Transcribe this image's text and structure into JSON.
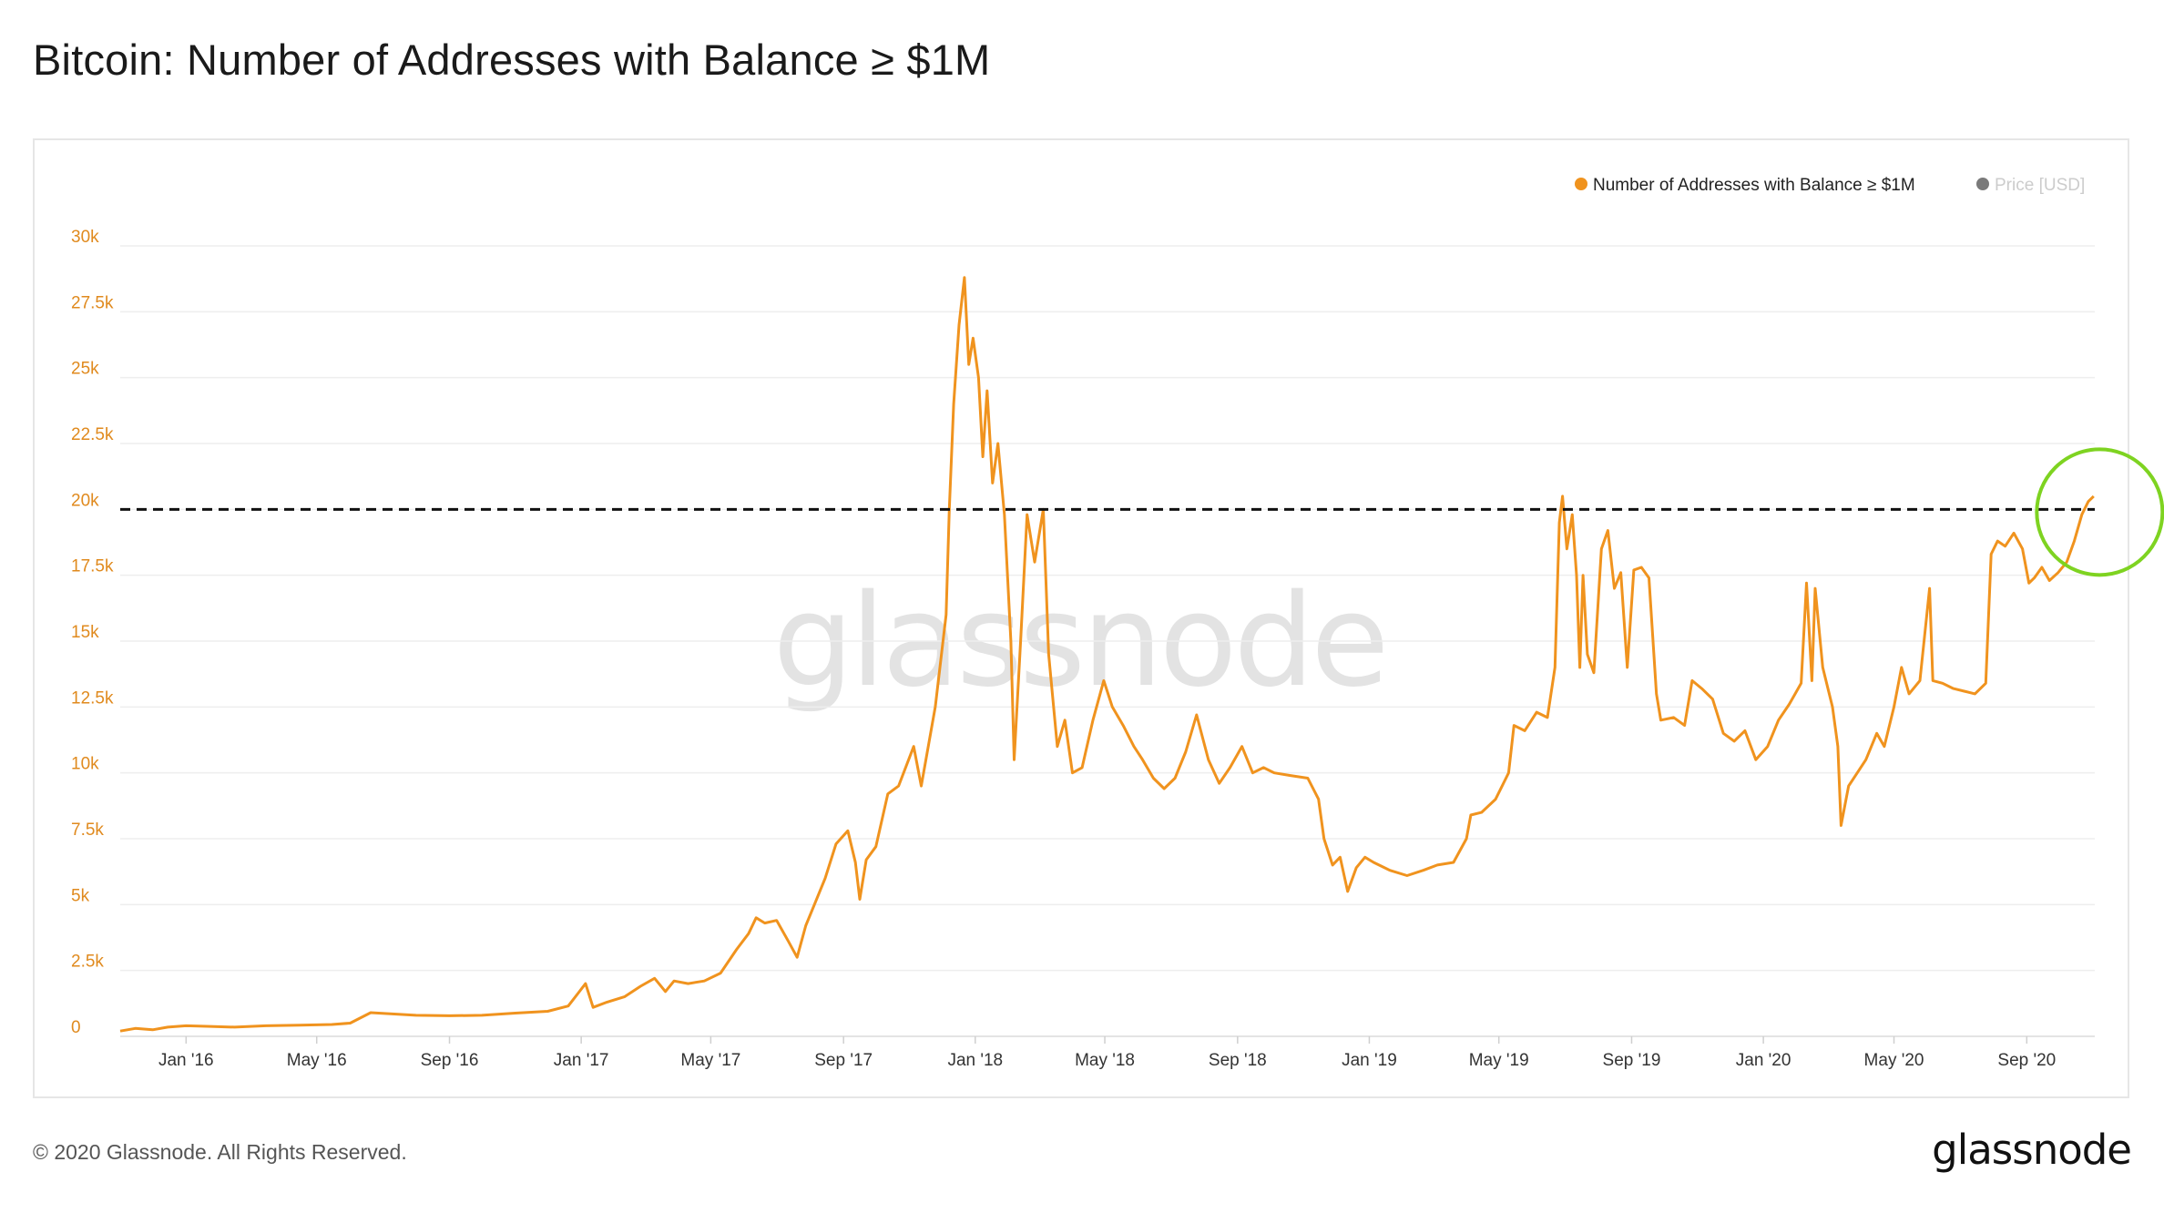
{
  "header": {
    "title": "Bitcoin: Number of Addresses with Balance ≥ $1M"
  },
  "footer": {
    "copyright": "© 2020 Glassnode. All Rights Reserved.",
    "brand": "glassnode"
  },
  "watermark": "glassnode",
  "colors": {
    "series": "#f0931e",
    "price": "#7a7a7a",
    "grid": "#eeeeee",
    "threshold": "#111111",
    "highlight": "#7ed321"
  },
  "chart_data": {
    "type": "line",
    "title": "Bitcoin: Number of Addresses with Balance ≥ $1M",
    "xlabel": "",
    "ylabel": "",
    "ylim": [
      0,
      30000
    ],
    "xlim": [
      "2015-11-01",
      "2020-11-03"
    ],
    "grid": true,
    "legend_placement": "top-right",
    "legend": [
      {
        "label": "Number of Addresses with Balance ≥ $1M",
        "color": "#f0931e",
        "active": true
      },
      {
        "label": "Price [USD]",
        "color": "#7a7a7a",
        "active": false
      }
    ],
    "y_ticks": [
      {
        "value": 0,
        "label": "0"
      },
      {
        "value": 2500,
        "label": "2.5k"
      },
      {
        "value": 5000,
        "label": "5k"
      },
      {
        "value": 7500,
        "label": "7.5k"
      },
      {
        "value": 10000,
        "label": "10k"
      },
      {
        "value": 12500,
        "label": "12.5k"
      },
      {
        "value": 15000,
        "label": "15k"
      },
      {
        "value": 17500,
        "label": "17.5k"
      },
      {
        "value": 20000,
        "label": "20k"
      },
      {
        "value": 22500,
        "label": "22.5k"
      },
      {
        "value": 25000,
        "label": "25k"
      },
      {
        "value": 27500,
        "label": "27.5k"
      },
      {
        "value": 30000,
        "label": "30k"
      }
    ],
    "x_ticks": [
      {
        "date": "2016-01-01",
        "label": "Jan '16"
      },
      {
        "date": "2016-05-01",
        "label": "May '16"
      },
      {
        "date": "2016-09-01",
        "label": "Sep '16"
      },
      {
        "date": "2017-01-01",
        "label": "Jan '17"
      },
      {
        "date": "2017-05-01",
        "label": "May '17"
      },
      {
        "date": "2017-09-01",
        "label": "Sep '17"
      },
      {
        "date": "2018-01-01",
        "label": "Jan '18"
      },
      {
        "date": "2018-05-01",
        "label": "May '18"
      },
      {
        "date": "2018-09-01",
        "label": "Sep '18"
      },
      {
        "date": "2019-01-01",
        "label": "Jan '19"
      },
      {
        "date": "2019-05-01",
        "label": "May '19"
      },
      {
        "date": "2019-09-01",
        "label": "Sep '19"
      },
      {
        "date": "2020-01-01",
        "label": "Jan '20"
      },
      {
        "date": "2020-05-01",
        "label": "May '20"
      },
      {
        "date": "2020-09-01",
        "label": "Sep '20"
      }
    ],
    "reference_line": {
      "value": 20000,
      "style": "dashed"
    },
    "highlight_circle": {
      "date": "2020-10-25",
      "value": 20000
    },
    "series": [
      {
        "name": "Number of Addresses with Balance ≥ $1M",
        "points": [
          [
            "2015-11-01",
            200
          ],
          [
            "2015-11-15",
            300
          ],
          [
            "2015-12-01",
            250
          ],
          [
            "2015-12-15",
            350
          ],
          [
            "2016-01-01",
            400
          ],
          [
            "2016-01-20",
            380
          ],
          [
            "2016-02-15",
            350
          ],
          [
            "2016-03-15",
            400
          ],
          [
            "2016-04-15",
            420
          ],
          [
            "2016-05-15",
            450
          ],
          [
            "2016-06-01",
            500
          ],
          [
            "2016-06-20",
            900
          ],
          [
            "2016-07-10",
            850
          ],
          [
            "2016-08-01",
            800
          ],
          [
            "2016-09-01",
            780
          ],
          [
            "2016-10-01",
            800
          ],
          [
            "2016-11-01",
            880
          ],
          [
            "2016-12-01",
            950
          ],
          [
            "2016-12-20",
            1150
          ],
          [
            "2017-01-05",
            2000
          ],
          [
            "2017-01-12",
            1100
          ],
          [
            "2017-01-25",
            1300
          ],
          [
            "2017-02-10",
            1500
          ],
          [
            "2017-02-25",
            1900
          ],
          [
            "2017-03-10",
            2200
          ],
          [
            "2017-03-20",
            1700
          ],
          [
            "2017-03-28",
            2100
          ],
          [
            "2017-04-10",
            2000
          ],
          [
            "2017-04-25",
            2100
          ],
          [
            "2017-05-10",
            2400
          ],
          [
            "2017-05-25",
            3300
          ],
          [
            "2017-06-05",
            3900
          ],
          [
            "2017-06-12",
            4500
          ],
          [
            "2017-06-20",
            4300
          ],
          [
            "2017-07-01",
            4400
          ],
          [
            "2017-07-12",
            3600
          ],
          [
            "2017-07-20",
            3000
          ],
          [
            "2017-07-28",
            4200
          ],
          [
            "2017-08-05",
            5000
          ],
          [
            "2017-08-15",
            6000
          ],
          [
            "2017-08-25",
            7300
          ],
          [
            "2017-09-05",
            7800
          ],
          [
            "2017-09-12",
            6600
          ],
          [
            "2017-09-16",
            5200
          ],
          [
            "2017-09-22",
            6700
          ],
          [
            "2017-10-01",
            7200
          ],
          [
            "2017-10-12",
            9200
          ],
          [
            "2017-10-22",
            9500
          ],
          [
            "2017-11-05",
            11000
          ],
          [
            "2017-11-12",
            9500
          ],
          [
            "2017-11-25",
            12500
          ],
          [
            "2017-12-05",
            16000
          ],
          [
            "2017-12-08",
            20000
          ],
          [
            "2017-12-12",
            24000
          ],
          [
            "2017-12-17",
            27000
          ],
          [
            "2017-12-22",
            28800
          ],
          [
            "2017-12-26",
            25500
          ],
          [
            "2017-12-30",
            26500
          ],
          [
            "2018-01-04",
            25000
          ],
          [
            "2018-01-08",
            22000
          ],
          [
            "2018-01-12",
            24500
          ],
          [
            "2018-01-17",
            21000
          ],
          [
            "2018-01-22",
            22500
          ],
          [
            "2018-01-28",
            19800
          ],
          [
            "2018-02-03",
            15000
          ],
          [
            "2018-02-06",
            10500
          ],
          [
            "2018-02-12",
            15000
          ],
          [
            "2018-02-18",
            19800
          ],
          [
            "2018-02-25",
            18000
          ],
          [
            "2018-03-05",
            20000
          ],
          [
            "2018-03-10",
            14500
          ],
          [
            "2018-03-18",
            11000
          ],
          [
            "2018-03-25",
            12000
          ],
          [
            "2018-04-01",
            10000
          ],
          [
            "2018-04-10",
            10200
          ],
          [
            "2018-04-20",
            12000
          ],
          [
            "2018-04-30",
            13500
          ],
          [
            "2018-05-08",
            12500
          ],
          [
            "2018-05-18",
            11800
          ],
          [
            "2018-05-28",
            11000
          ],
          [
            "2018-06-05",
            10500
          ],
          [
            "2018-06-15",
            9800
          ],
          [
            "2018-06-25",
            9400
          ],
          [
            "2018-07-05",
            9800
          ],
          [
            "2018-07-15",
            10800
          ],
          [
            "2018-07-25",
            12200
          ],
          [
            "2018-08-05",
            10500
          ],
          [
            "2018-08-15",
            9600
          ],
          [
            "2018-08-25",
            10200
          ],
          [
            "2018-09-05",
            11000
          ],
          [
            "2018-09-15",
            10000
          ],
          [
            "2018-09-25",
            10200
          ],
          [
            "2018-10-05",
            10000
          ],
          [
            "2018-10-20",
            9900
          ],
          [
            "2018-11-05",
            9800
          ],
          [
            "2018-11-15",
            9000
          ],
          [
            "2018-11-20",
            7500
          ],
          [
            "2018-11-28",
            6500
          ],
          [
            "2018-12-05",
            6800
          ],
          [
            "2018-12-12",
            5500
          ],
          [
            "2018-12-20",
            6400
          ],
          [
            "2018-12-28",
            6800
          ],
          [
            "2019-01-05",
            6600
          ],
          [
            "2019-01-20",
            6300
          ],
          [
            "2019-02-05",
            6100
          ],
          [
            "2019-02-20",
            6300
          ],
          [
            "2019-03-05",
            6500
          ],
          [
            "2019-03-20",
            6600
          ],
          [
            "2019-04-01",
            7500
          ],
          [
            "2019-04-05",
            8400
          ],
          [
            "2019-04-15",
            8500
          ],
          [
            "2019-04-28",
            9000
          ],
          [
            "2019-05-10",
            10000
          ],
          [
            "2019-05-15",
            11800
          ],
          [
            "2019-05-25",
            11600
          ],
          [
            "2019-06-05",
            12300
          ],
          [
            "2019-06-15",
            12100
          ],
          [
            "2019-06-22",
            14000
          ],
          [
            "2019-06-26",
            19500
          ],
          [
            "2019-06-29",
            20500
          ],
          [
            "2019-07-03",
            18500
          ],
          [
            "2019-07-08",
            19800
          ],
          [
            "2019-07-12",
            17500
          ],
          [
            "2019-07-15",
            14000
          ],
          [
            "2019-07-18",
            17500
          ],
          [
            "2019-07-22",
            14500
          ],
          [
            "2019-07-28",
            13800
          ],
          [
            "2019-08-04",
            18500
          ],
          [
            "2019-08-10",
            19200
          ],
          [
            "2019-08-16",
            17000
          ],
          [
            "2019-08-22",
            17600
          ],
          [
            "2019-08-28",
            14000
          ],
          [
            "2019-09-03",
            17700
          ],
          [
            "2019-09-10",
            17800
          ],
          [
            "2019-09-17",
            17400
          ],
          [
            "2019-09-24",
            13000
          ],
          [
            "2019-09-28",
            12000
          ],
          [
            "2019-10-10",
            12100
          ],
          [
            "2019-10-20",
            11800
          ],
          [
            "2019-10-27",
            13500
          ],
          [
            "2019-11-05",
            13200
          ],
          [
            "2019-11-15",
            12800
          ],
          [
            "2019-11-25",
            11500
          ],
          [
            "2019-12-05",
            11200
          ],
          [
            "2019-12-15",
            11600
          ],
          [
            "2019-12-25",
            10500
          ],
          [
            "2020-01-05",
            11000
          ],
          [
            "2020-01-15",
            12000
          ],
          [
            "2020-01-25",
            12600
          ],
          [
            "2020-02-05",
            13400
          ],
          [
            "2020-02-10",
            17200
          ],
          [
            "2020-02-15",
            13500
          ],
          [
            "2020-02-18",
            17000
          ],
          [
            "2020-02-25",
            14000
          ],
          [
            "2020-03-05",
            12500
          ],
          [
            "2020-03-10",
            11000
          ],
          [
            "2020-03-13",
            8000
          ],
          [
            "2020-03-20",
            9500
          ],
          [
            "2020-03-28",
            10000
          ],
          [
            "2020-04-05",
            10500
          ],
          [
            "2020-04-15",
            11500
          ],
          [
            "2020-04-22",
            11000
          ],
          [
            "2020-05-01",
            12500
          ],
          [
            "2020-05-08",
            14000
          ],
          [
            "2020-05-15",
            13000
          ],
          [
            "2020-05-25",
            13500
          ],
          [
            "2020-06-03",
            17000
          ],
          [
            "2020-06-06",
            13500
          ],
          [
            "2020-06-15",
            13400
          ],
          [
            "2020-06-25",
            13200
          ],
          [
            "2020-07-05",
            13100
          ],
          [
            "2020-07-15",
            13000
          ],
          [
            "2020-07-25",
            13400
          ],
          [
            "2020-07-30",
            18300
          ],
          [
            "2020-08-05",
            18800
          ],
          [
            "2020-08-12",
            18600
          ],
          [
            "2020-08-20",
            19100
          ],
          [
            "2020-08-28",
            18500
          ],
          [
            "2020-09-03",
            17200
          ],
          [
            "2020-09-08",
            17400
          ],
          [
            "2020-09-15",
            17800
          ],
          [
            "2020-09-22",
            17300
          ],
          [
            "2020-09-30",
            17600
          ],
          [
            "2020-10-08",
            18000
          ],
          [
            "2020-10-15",
            18800
          ],
          [
            "2020-10-22",
            19800
          ],
          [
            "2020-10-28",
            20300
          ],
          [
            "2020-11-02",
            20500
          ]
        ]
      }
    ]
  }
}
